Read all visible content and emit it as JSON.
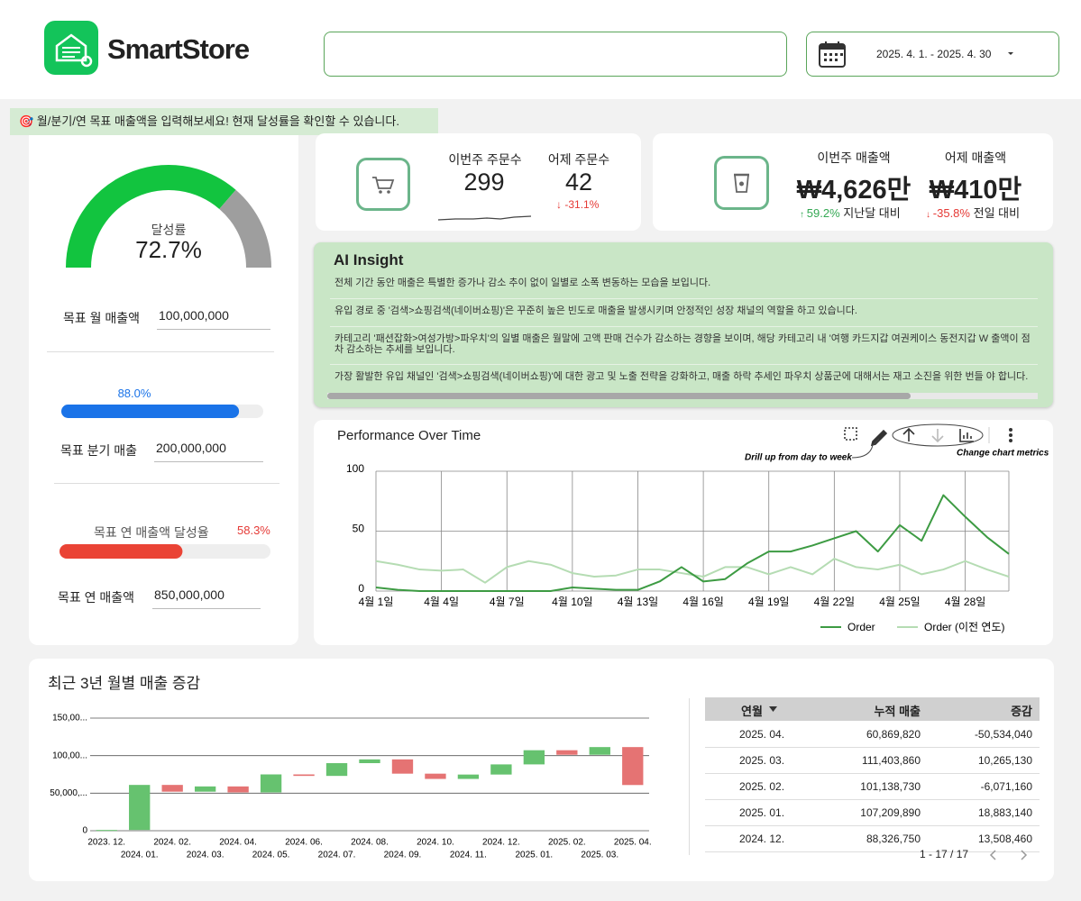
{
  "header": {
    "logo": "SmartStore",
    "date_range": "2025. 4. 1. - 2025. 4. 30"
  },
  "banner": "🎯 월/분기/연 목표 매출액을 입력해보세요! 현재 달성률을 확인할 수 있습니다.",
  "goals": {
    "gauge_label": "달성률",
    "gauge_value": 72.7,
    "gauge_value_label": "72.7%",
    "monthly_label": "목표 월 매출액",
    "monthly_target": "100,000,000",
    "quarter_rate": 88.0,
    "quarter_rate_label": "88.0%",
    "quarter_label": "목표 분기 매출",
    "quarter_target": "200,000,000",
    "year_rate_title": "목표 연 매출액 달성율",
    "year_rate": 58.3,
    "year_rate_label": "58.3%",
    "year_label": "목표 연 매출액",
    "year_target": "850,000,000"
  },
  "orders": {
    "week_label": "이번주 주문수",
    "week_value": 299,
    "yesterday_label": "어제 주문수",
    "yesterday_value": 42,
    "change_label": "-31.1%"
  },
  "sales": {
    "week_label": "이번주 매출액",
    "week_value": "₩4,626만",
    "yesterday_label": "어제 매출액",
    "yesterday_value": "₩410만",
    "month_change_label": "59.2%",
    "month_change_text": "지난달 대비",
    "day_change_label": "-35.8%",
    "day_change_text": "전일 대비"
  },
  "insight": {
    "title": "AI Insight",
    "paragraphs": [
      "전체 기간 동안 매출은 특별한 증가나 감소 추이 없이 일별로 소폭 변동하는 모습을 보입니다.",
      "유입 경로 중 '검색>쇼핑검색(네이버쇼핑)'은 꾸준히 높은 빈도로 매출을 발생시키며 안정적인 성장 채널의 역할을 하고 있습니다.",
      "카테고리 '패션잡화>여성가방>파우치'의 일별 매출은 월말에 고액 판매 건수가 감소하는 경향을 보이며, 해당 카테고리 내 '여행 카드지갑 여권케이스 동전지갑 W 출액이 점차 감소하는 추세를 보입니다.",
      "가장 활발한 유입 채널인 '검색>쇼핑검색(네이버쇼핑)'에 대한 광고 및 노출 전략을 강화하고, 매출 하락 추세인 파우치 상품군에 대해서는 재고 소진을 위한 번들 야 합니다."
    ]
  },
  "chart_data": [
    {
      "type": "line",
      "title": "Performance Over Time",
      "annotations": [
        "Drill up from day to week",
        "Change chart metrics"
      ],
      "categories": [
        "4월 1일",
        null,
        null,
        "4월 4일",
        null,
        null,
        "4월 7일",
        null,
        null,
        "4월 10일",
        null,
        null,
        "4월 13일",
        null,
        null,
        "4월 16일",
        null,
        null,
        "4월 19일",
        null,
        null,
        "4월 22일",
        null,
        null,
        "4월 25일",
        null,
        null,
        "4월 28일",
        null,
        null
      ],
      "series": [
        {
          "name": "Order",
          "color": "#3d9b43",
          "values": [
            3,
            1,
            0,
            0,
            0,
            0,
            0,
            0,
            0,
            3,
            2,
            1,
            1,
            8,
            20,
            8,
            10,
            23,
            33,
            33,
            38,
            44,
            50,
            33,
            55,
            42,
            80,
            62,
            45,
            31
          ]
        },
        {
          "name": "Order (이전 연도)",
          "color": "#b5dcb3",
          "values": [
            25,
            22,
            18,
            17,
            18,
            7,
            20,
            25,
            22,
            15,
            12,
            13,
            18,
            18,
            15,
            12,
            20,
            20,
            14,
            20,
            14,
            27,
            20,
            18,
            22,
            14,
            18,
            25,
            18,
            12
          ]
        }
      ],
      "ylim": [
        0,
        100
      ],
      "yticks": [
        0,
        50,
        100
      ],
      "grid": true,
      "legend": "bottom-right"
    },
    {
      "type": "waterfall",
      "title": "최근 3년 월별 매출 증감",
      "categories": [
        "2023. 12.",
        "2024. 01.",
        "2024. 02.",
        "2024. 03.",
        "2024. 04.",
        "2024. 05.",
        "2024. 06.",
        "2024. 07.",
        "2024. 08.",
        "2024. 09.",
        "2024. 10.",
        "2024. 11.",
        "2024. 12.",
        "2025. 01.",
        "2025. 02.",
        "2025. 03.",
        "2025. 04."
      ],
      "values": [
        1000000,
        60000000,
        -9000000,
        7000000,
        -8000000,
        24000000,
        -2000000,
        17000000,
        5000000,
        -19000000,
        -7000000,
        5818290,
        13508460,
        18883140,
        -6071160,
        10265130,
        -50534040
      ],
      "colors": {
        "increase": "#66c26f",
        "decrease": "#e57373"
      },
      "ylim": [
        0,
        165000000
      ],
      "yticks": [
        0,
        {
          "value": 50000000,
          "label": "50,000,..."
        },
        {
          "value": 100000000,
          "label": "100,00..."
        },
        {
          "value": 150000000,
          "label": "150,00..."
        }
      ],
      "grid": true
    }
  ],
  "table": {
    "columns": [
      "연월",
      "누적 매출",
      "증감"
    ],
    "rows": [
      [
        "2025. 04.",
        "60,869,820",
        "-50,534,040"
      ],
      [
        "2025. 03.",
        "111,403,860",
        "10,265,130"
      ],
      [
        "2025. 02.",
        "101,138,730",
        "-6,071,160"
      ],
      [
        "2025. 01.",
        "107,209,890",
        "18,883,140"
      ],
      [
        "2024. 12.",
        "88,326,750",
        "13,508,460"
      ]
    ],
    "pagination": "1 - 17 / 17"
  }
}
